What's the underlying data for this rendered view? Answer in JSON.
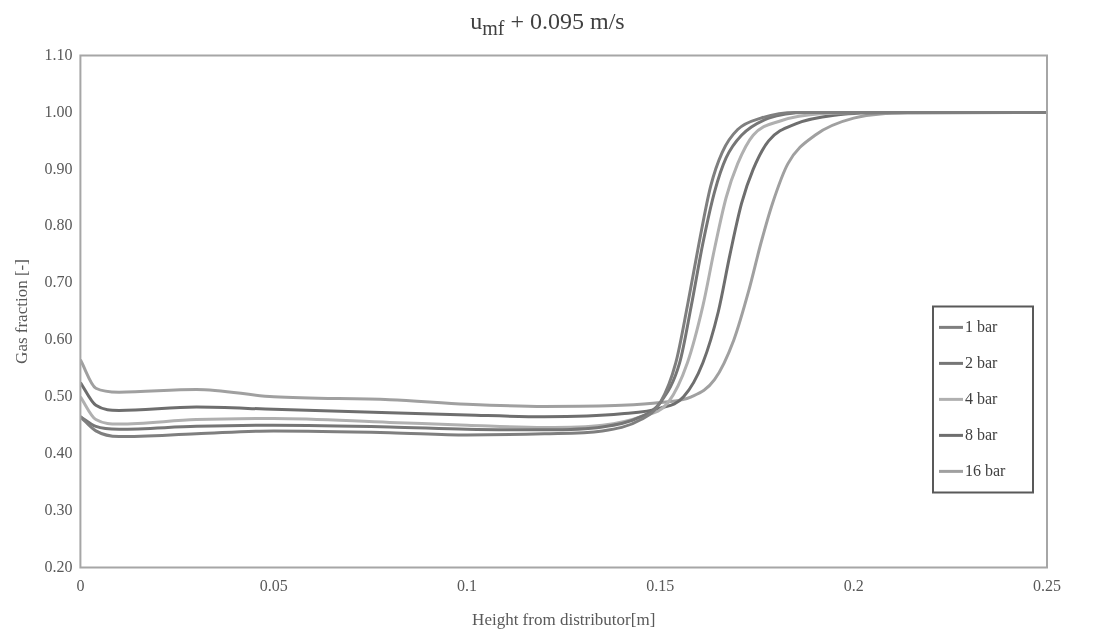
{
  "chart_data": {
    "type": "line",
    "title": "u$_{mf}$ + 0.095 m/s",
    "xlabel": "Height from distributor[m]",
    "ylabel": "Gas fraction [-]",
    "xlim": [
      0,
      0.25
    ],
    "xticks": [
      0,
      0.05,
      0.1,
      0.15,
      0.2,
      0.25
    ],
    "ylim": [
      0.2,
      1.1
    ],
    "yticks": [
      {
        "value": 0.2,
        "label": "0.20"
      },
      {
        "value": 0.3,
        "label": "0.30"
      },
      {
        "value": 0.4,
        "label": "0.40"
      },
      {
        "value": 0.5,
        "label": "0.50"
      },
      {
        "value": 0.6,
        "label": "0.60"
      },
      {
        "value": 0.7,
        "label": "0.70"
      },
      {
        "value": 0.8,
        "label": "0.80"
      },
      {
        "value": 0.9,
        "label": "0.90"
      },
      {
        "value": 1.0,
        "label": "1.00"
      },
      {
        "value": 1.1,
        "label": "1.10"
      }
    ],
    "grid": false,
    "legend": "right",
    "marker": "none",
    "line_style": "solid",
    "series": [
      {
        "name": "1 bar",
        "color": "#7f7f7f",
        "x": [
          0,
          0.004,
          0.01,
          0.03,
          0.05,
          0.08,
          0.1,
          0.12,
          0.135,
          0.145,
          0.15,
          0.154,
          0.157,
          0.16,
          0.163,
          0.166,
          0.17,
          0.176,
          0.185,
          0.2,
          0.25
        ],
        "values": [
          0.465,
          0.44,
          0.43,
          0.435,
          0.44,
          0.437,
          0.433,
          0.435,
          0.44,
          0.46,
          0.49,
          0.56,
          0.66,
          0.77,
          0.87,
          0.93,
          0.97,
          0.99,
          1.0,
          1.0,
          1.0
        ]
      },
      {
        "name": "2 bar",
        "color": "#767676",
        "x": [
          0,
          0.004,
          0.01,
          0.03,
          0.05,
          0.08,
          0.1,
          0.12,
          0.135,
          0.145,
          0.15,
          0.155,
          0.158,
          0.161,
          0.164,
          0.167,
          0.171,
          0.178,
          0.188,
          0.2,
          0.25
        ],
        "values": [
          0.465,
          0.448,
          0.443,
          0.448,
          0.45,
          0.447,
          0.443,
          0.442,
          0.447,
          0.465,
          0.49,
          0.56,
          0.66,
          0.77,
          0.86,
          0.92,
          0.96,
          0.99,
          1.0,
          1.0,
          1.0
        ]
      },
      {
        "name": "4 bar",
        "color": "#b0b0b0",
        "x": [
          0,
          0.004,
          0.01,
          0.03,
          0.05,
          0.08,
          0.1,
          0.12,
          0.135,
          0.145,
          0.152,
          0.157,
          0.161,
          0.164,
          0.167,
          0.17,
          0.174,
          0.181,
          0.192,
          0.205,
          0.25
        ],
        "values": [
          0.5,
          0.46,
          0.452,
          0.46,
          0.462,
          0.455,
          0.45,
          0.446,
          0.45,
          0.465,
          0.49,
          0.56,
          0.66,
          0.76,
          0.85,
          0.91,
          0.96,
          0.985,
          0.998,
          1.0,
          1.0
        ]
      },
      {
        "name": "8 bar",
        "color": "#6e6e6e",
        "x": [
          0,
          0.004,
          0.01,
          0.03,
          0.05,
          0.08,
          0.1,
          0.12,
          0.14,
          0.15,
          0.156,
          0.161,
          0.165,
          0.168,
          0.171,
          0.174,
          0.178,
          0.185,
          0.196,
          0.21,
          0.25
        ],
        "values": [
          0.525,
          0.485,
          0.476,
          0.482,
          0.478,
          0.472,
          0.468,
          0.465,
          0.47,
          0.48,
          0.5,
          0.56,
          0.65,
          0.75,
          0.84,
          0.9,
          0.95,
          0.98,
          0.996,
          1.0,
          1.0
        ]
      },
      {
        "name": "16 bar",
        "color": "#a0a0a0",
        "x": [
          0,
          0.004,
          0.01,
          0.03,
          0.05,
          0.08,
          0.1,
          0.12,
          0.14,
          0.15,
          0.158,
          0.164,
          0.169,
          0.173,
          0.176,
          0.179,
          0.183,
          0.19,
          0.2,
          0.215,
          0.25
        ],
        "values": [
          0.565,
          0.515,
          0.508,
          0.513,
          0.5,
          0.495,
          0.487,
          0.483,
          0.485,
          0.49,
          0.5,
          0.53,
          0.6,
          0.69,
          0.77,
          0.84,
          0.91,
          0.96,
          0.99,
          0.999,
          1.0
        ]
      }
    ]
  }
}
